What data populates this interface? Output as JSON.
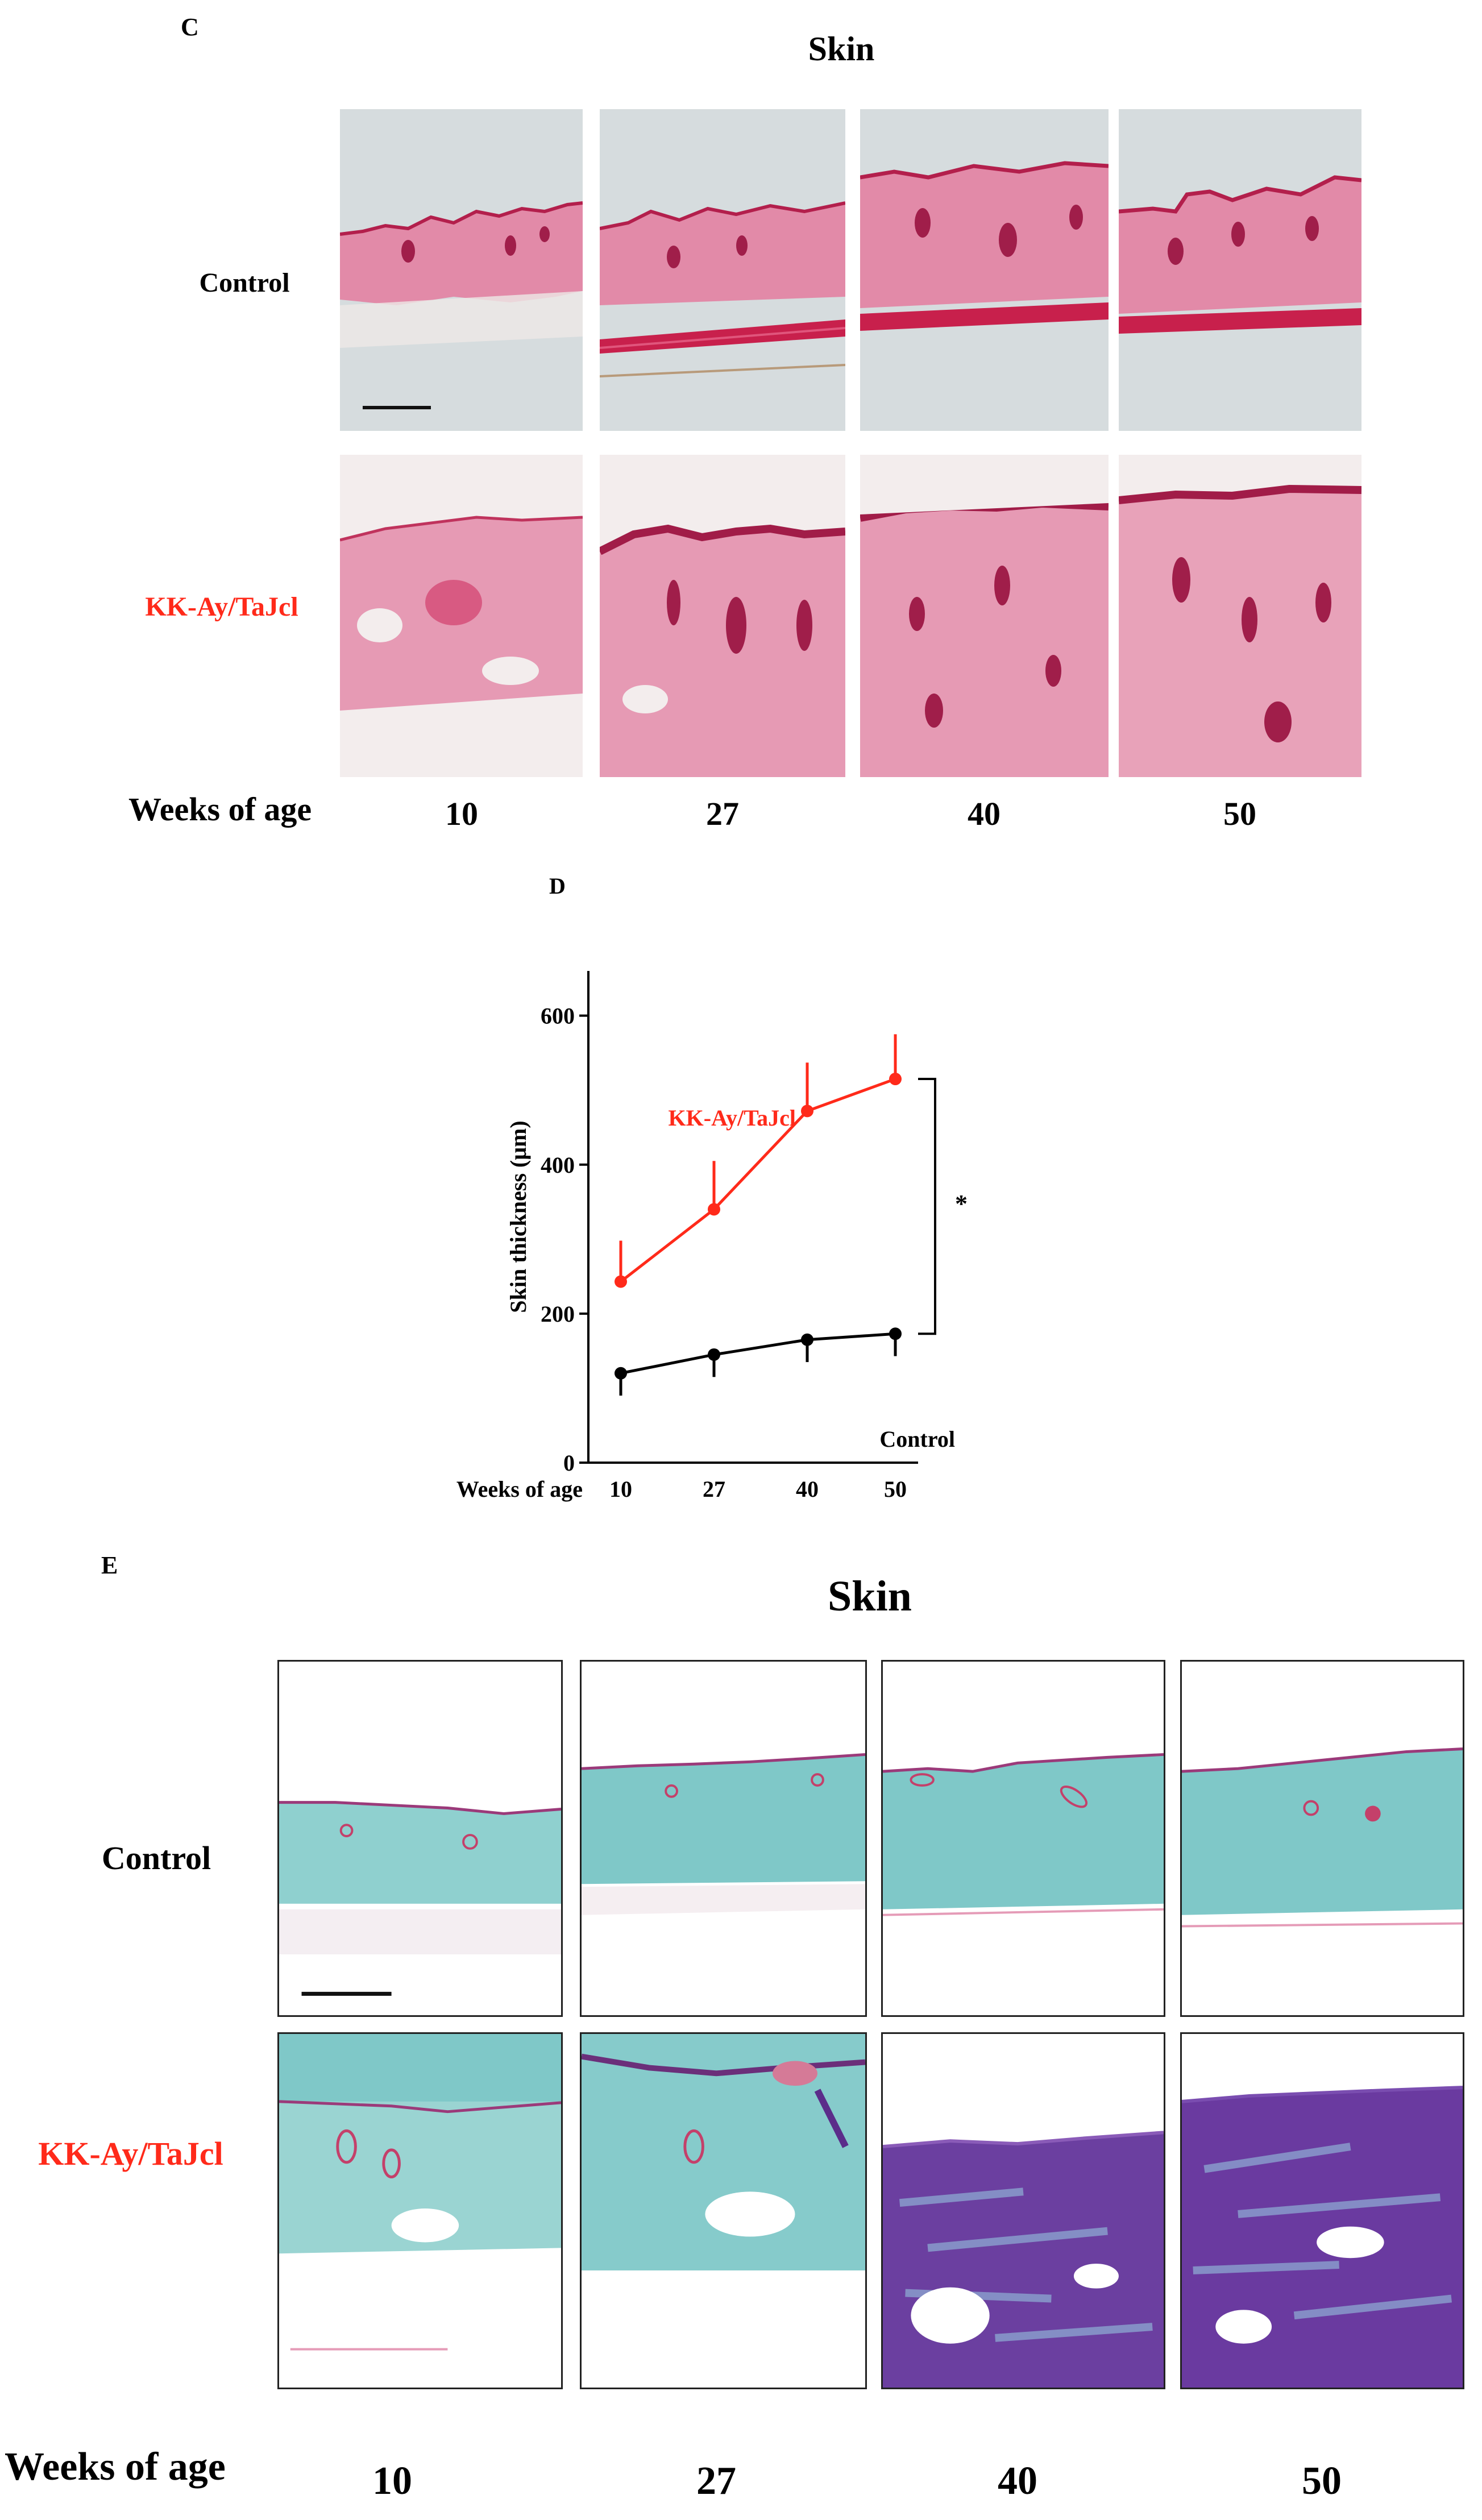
{
  "panel_c": {
    "letter": "C",
    "title": "Skin",
    "rows": [
      "Control",
      "KK-Ay/TaJcl"
    ],
    "x_label": "Weeks of age",
    "ages": [
      "10",
      "27",
      "40",
      "50"
    ]
  },
  "panel_d": {
    "letter": "D",
    "chart_data": {
      "type": "line",
      "x": [
        10,
        27,
        40,
        50
      ],
      "x_tick_labels": [
        "10",
        "27",
        "40",
        "50"
      ],
      "xlabel": "Weeks of age",
      "ylabel": "Skin thickness (μm)",
      "ylim": [
        0,
        660
      ],
      "y_ticks": [
        0,
        200,
        400,
        600
      ],
      "grid": false,
      "series": [
        {
          "name": "KK-Ay/TaJcl",
          "color": "#ff2a1a",
          "values": [
            243,
            340,
            472,
            515
          ],
          "error": [
            55,
            65,
            65,
            60
          ],
          "error_direction": "up"
        },
        {
          "name": "Control",
          "color": "#000000",
          "values": [
            120,
            145,
            165,
            173
          ],
          "error": [
            30,
            30,
            30,
            30
          ],
          "error_direction": "down"
        }
      ],
      "annotation": "*"
    }
  },
  "panel_e": {
    "letter": "E",
    "title": "Skin",
    "rows": [
      "Control",
      "KK-Ay/TaJcl"
    ],
    "x_label": "Weeks of age",
    "ages": [
      "10",
      "27",
      "40",
      "50"
    ]
  },
  "colors": {
    "red_label": "#ff2a1a",
    "stain_he": "#d33a6a",
    "stain_masson_blue": "#6fc3c4",
    "stain_purple": "#5b2d8a"
  }
}
